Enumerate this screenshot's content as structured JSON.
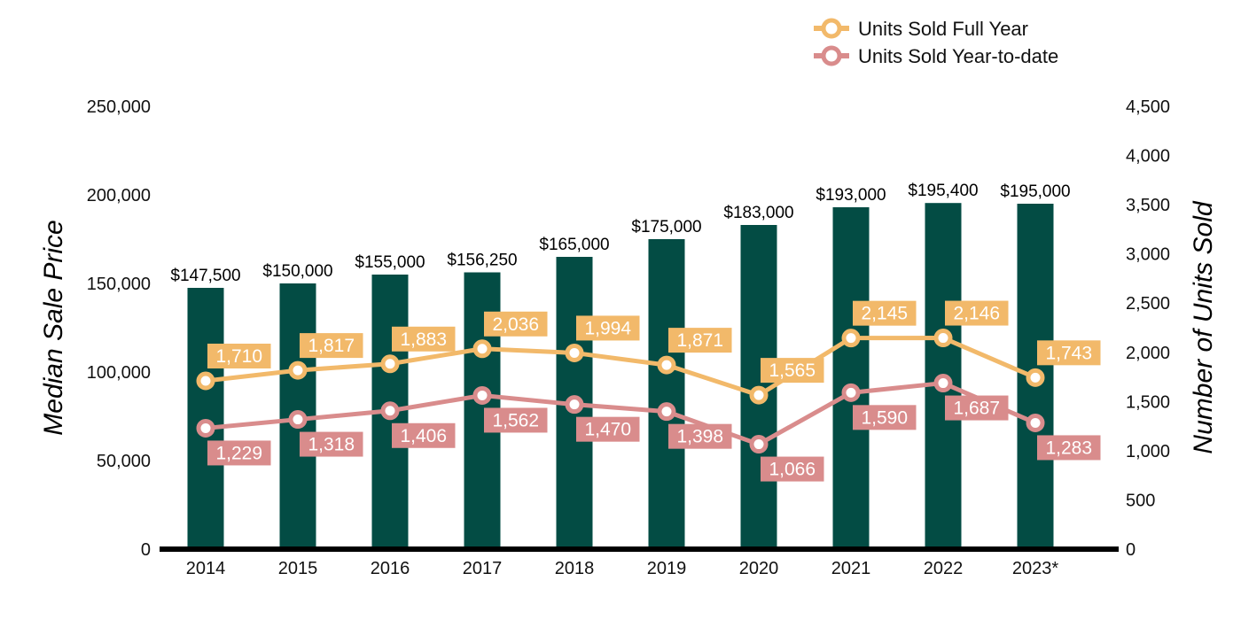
{
  "chart_data": {
    "type": "bar",
    "categories": [
      "2014",
      "2015",
      "2016",
      "2017",
      "2018",
      "2019",
      "2020",
      "2021",
      "2022",
      "2023*"
    ],
    "ylabel_left": "Median Sale Price",
    "ylabel_right": "Number of Units Sold",
    "ylim_left": [
      0,
      250000
    ],
    "ylim_right": [
      0,
      4500
    ],
    "yticks_left": [
      "0",
      "50,000",
      "100,000",
      "150,000",
      "200,000",
      "250,000"
    ],
    "yticks_right": [
      "0",
      "500",
      "1,000",
      "1,500",
      "2,000",
      "2,500",
      "3,000",
      "3,500",
      "4,000",
      "4,500"
    ],
    "grid": false,
    "legend_position": "top-right",
    "bars": {
      "name": "Median Sale Price",
      "axis": "left",
      "color": "#034c44",
      "values": [
        147500,
        150000,
        155000,
        156250,
        165000,
        175000,
        183000,
        193000,
        195400,
        195000
      ],
      "labels": [
        "$147,500",
        "$150,000",
        "$155,000",
        "$156,250",
        "$165,000",
        "$175,000",
        "$183,000",
        "$193,000",
        "$195,400",
        "$195,000"
      ]
    },
    "series": [
      {
        "name": "Units Sold Full Year",
        "type": "line",
        "axis": "right",
        "color": "#f2b96a",
        "values": [
          1710,
          1817,
          1883,
          2036,
          1994,
          1871,
          1565,
          2145,
          2146,
          1743
        ],
        "labels": [
          "1,710",
          "1,817",
          "1,883",
          "2,036",
          "1,994",
          "1,871",
          "1,565",
          "2,145",
          "2,146",
          "1,743"
        ]
      },
      {
        "name": "Units Sold Year-to-date",
        "type": "line",
        "axis": "right",
        "color": "#d98c8c",
        "values": [
          1229,
          1318,
          1406,
          1562,
          1470,
          1398,
          1066,
          1590,
          1687,
          1283
        ],
        "labels": [
          "1,229",
          "1,318",
          "1,406",
          "1,562",
          "1,470",
          "1,398",
          "1,066",
          "1,590",
          "1,687",
          "1,283"
        ]
      }
    ]
  }
}
